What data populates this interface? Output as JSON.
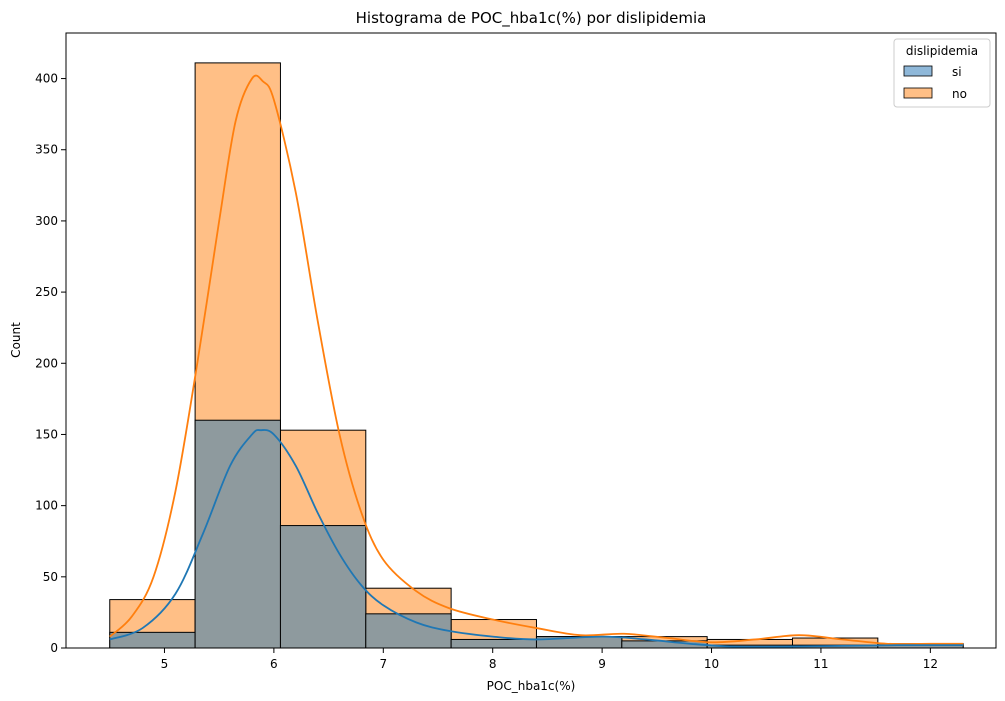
{
  "chart_data": {
    "type": "bar",
    "title": "Histograma de POC_hba1c(%) por dislipidemia",
    "xlabel": "POC_hba1c(%)",
    "ylabel": "Count",
    "xlim": [
      4.1,
      12.6
    ],
    "ylim": [
      0,
      432
    ],
    "xticks": [
      5,
      6,
      7,
      8,
      9,
      10,
      11,
      12
    ],
    "yticks": [
      0,
      50,
      100,
      150,
      200,
      250,
      300,
      350,
      400
    ],
    "bin_edges": [
      4.5,
      5.28,
      6.06,
      6.84,
      7.62,
      8.4,
      9.18,
      9.96,
      10.74,
      11.52,
      12.3
    ],
    "grid": false,
    "legend": {
      "title": "dislipidemia",
      "placement": "top-right"
    },
    "series": [
      {
        "name": "si",
        "color": "#1f77b4",
        "fill": "#8fb8d9",
        "values": [
          11,
          160,
          86,
          24,
          6,
          8,
          5,
          2,
          2,
          2
        ],
        "kde": [
          [
            4.5,
            6
          ],
          [
            4.8,
            14
          ],
          [
            5.1,
            38
          ],
          [
            5.35,
            80
          ],
          [
            5.6,
            128
          ],
          [
            5.8,
            150
          ],
          [
            5.88,
            153
          ],
          [
            6.0,
            150
          ],
          [
            6.2,
            128
          ],
          [
            6.4,
            95
          ],
          [
            6.6,
            66
          ],
          [
            6.8,
            44
          ],
          [
            7.0,
            30
          ],
          [
            7.3,
            18
          ],
          [
            7.6,
            12
          ],
          [
            8.0,
            8
          ],
          [
            8.4,
            6
          ],
          [
            9.0,
            8
          ],
          [
            9.4,
            6
          ],
          [
            9.8,
            3
          ],
          [
            10.2,
            1
          ],
          [
            10.7,
            1
          ],
          [
            11.2,
            1.5
          ],
          [
            11.7,
            2
          ],
          [
            12.3,
            2
          ]
        ]
      },
      {
        "name": "no",
        "color": "#ff7f0e",
        "fill": "#ffbf86",
        "values": [
          34,
          411,
          153,
          42,
          20,
          8,
          8,
          6,
          7,
          3
        ],
        "kde": [
          [
            4.5,
            8
          ],
          [
            4.7,
            22
          ],
          [
            4.9,
            50
          ],
          [
            5.1,
            110
          ],
          [
            5.3,
            200
          ],
          [
            5.5,
            300
          ],
          [
            5.65,
            370
          ],
          [
            5.8,
            400
          ],
          [
            5.9,
            398
          ],
          [
            6.0,
            385
          ],
          [
            6.2,
            320
          ],
          [
            6.4,
            230
          ],
          [
            6.6,
            150
          ],
          [
            6.8,
            95
          ],
          [
            7.0,
            62
          ],
          [
            7.3,
            40
          ],
          [
            7.6,
            28
          ],
          [
            8.0,
            20
          ],
          [
            8.4,
            14
          ],
          [
            8.8,
            9
          ],
          [
            9.2,
            10
          ],
          [
            9.6,
            7
          ],
          [
            10.0,
            4
          ],
          [
            10.4,
            6
          ],
          [
            10.8,
            9
          ],
          [
            11.2,
            6
          ],
          [
            11.6,
            3
          ],
          [
            12.0,
            3
          ],
          [
            12.3,
            3
          ]
        ]
      }
    ]
  }
}
